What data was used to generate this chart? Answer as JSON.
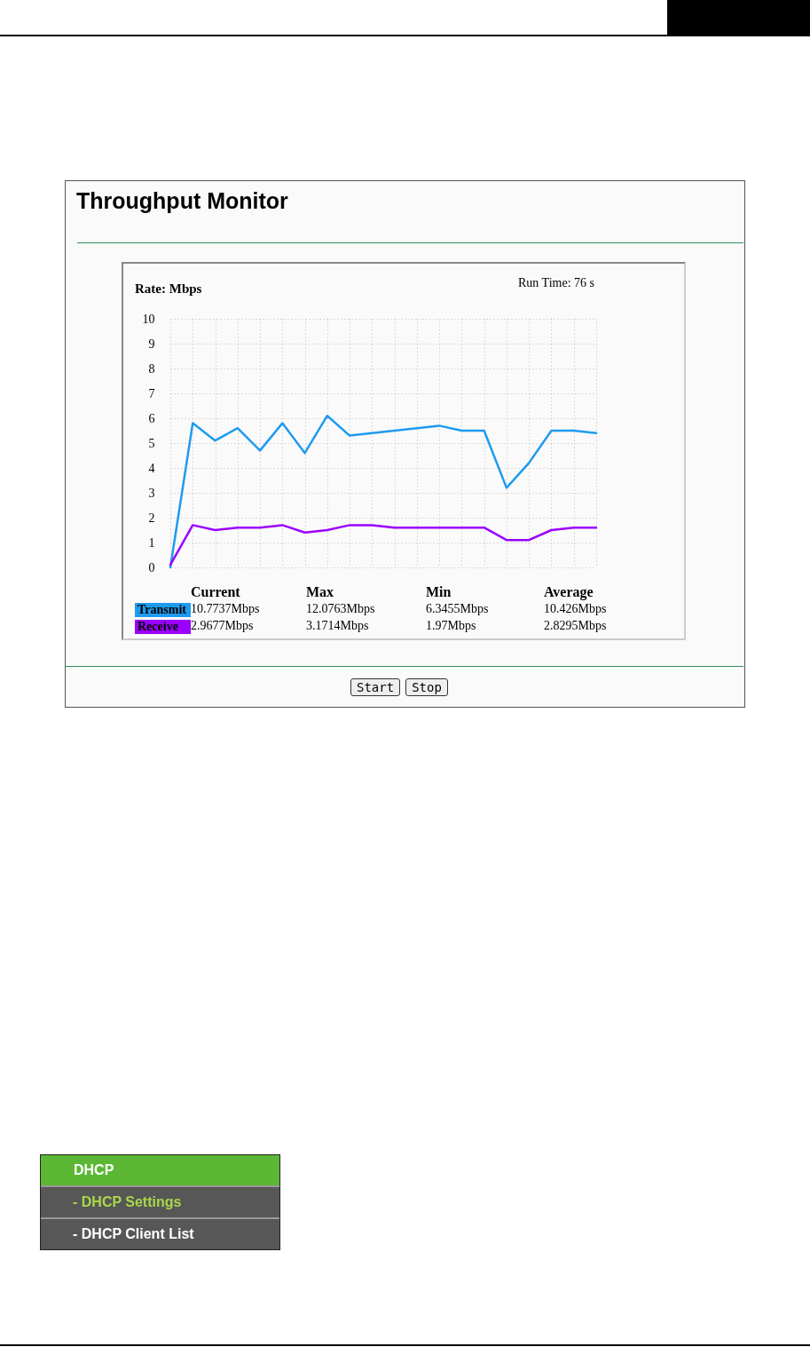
{
  "chart_data": {
    "type": "line",
    "title": "Throughput Monitor",
    "ylabel": "Rate: Mbps",
    "categories": [
      null,
      null,
      null,
      null,
      null,
      null,
      null,
      null,
      null,
      null,
      null,
      null,
      null,
      null,
      null,
      null,
      null,
      null,
      null,
      null
    ],
    "series": [
      {
        "name": "Transmit",
        "color": "#1e9bf0",
        "values": [
          0,
          5.8,
          5.1,
          5.6,
          4.7,
          5.8,
          4.6,
          6.1,
          5.3,
          5.4,
          5.5,
          5.6,
          5.7,
          5.5,
          5.5,
          3.2,
          4.2,
          5.5,
          5.5,
          5.4
        ]
      },
      {
        "name": "Receive",
        "color": "#9b00ff",
        "values": [
          0.1,
          1.7,
          1.5,
          1.6,
          1.6,
          1.7,
          1.4,
          1.5,
          1.7,
          1.7,
          1.6,
          1.6,
          1.6,
          1.6,
          1.6,
          1.1,
          1.1,
          1.5,
          1.6,
          1.6
        ]
      }
    ],
    "ylim": [
      0,
      10
    ],
    "yticks": [
      0,
      1,
      2,
      3,
      4,
      5,
      6,
      7,
      8,
      9,
      10
    ],
    "grid": true,
    "legend": "bottom",
    "tick_labels": "y",
    "marker": "none",
    "line_style": "solid",
    "annotations": [
      "Run Time: 76 s",
      "Current",
      "Max",
      "Min",
      "Average",
      "10.7737Mbps",
      "12.0763Mbps",
      "6.3455Mbps",
      "10.426Mbps",
      "2.9677Mbps",
      "3.1714Mbps",
      "1.97Mbps",
      "2.8295Mbps",
      "Start",
      "Stop",
      "DHCP",
      "- DHCP Settings",
      "- DHCP Client List"
    ]
  }
}
